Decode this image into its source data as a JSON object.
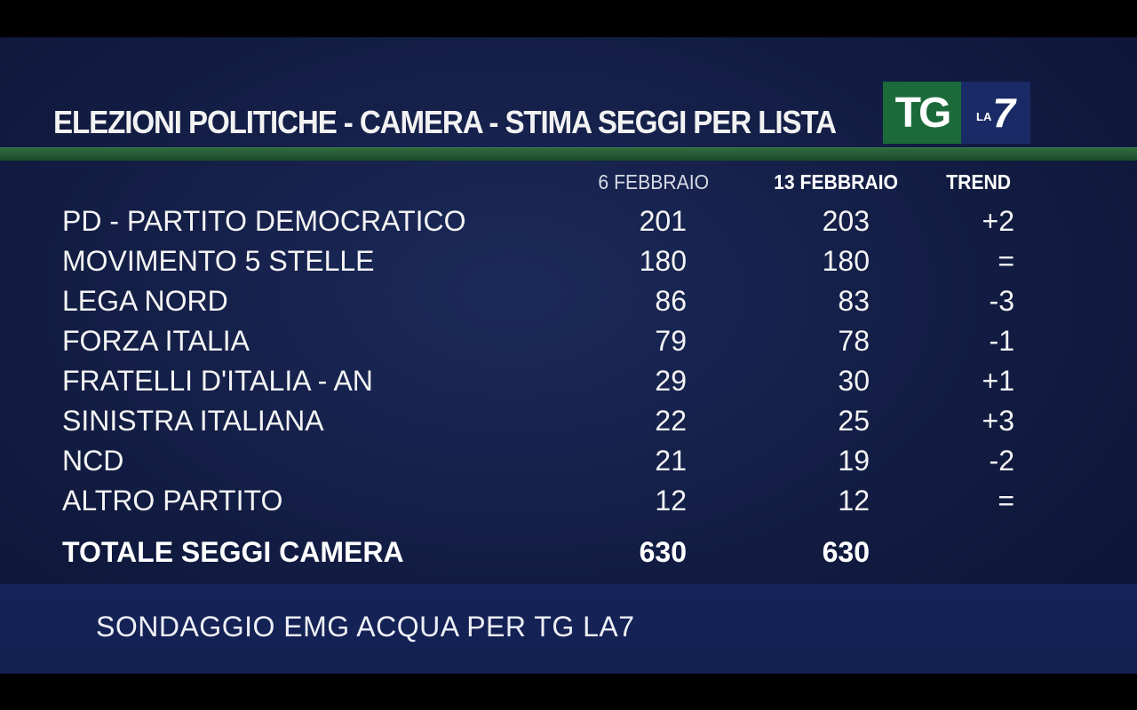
{
  "title": "ELEZIONI POLITICHE - CAMERA - STIMA SEGGI PER LISTA",
  "logo": {
    "tg": "TG",
    "la": "LA",
    "seven": "7"
  },
  "columns": {
    "date1": "6 FEBBRAIO",
    "date2": "13 FEBBRAIO",
    "trend": "TREND"
  },
  "rows": [
    {
      "name": "PD - PARTITO DEMOCRATICO",
      "v1": "201",
      "v2": "203",
      "trend": "+2"
    },
    {
      "name": "MOVIMENTO 5 STELLE",
      "v1": "180",
      "v2": "180",
      "trend": "="
    },
    {
      "name": "LEGA NORD",
      "v1": "86",
      "v2": "83",
      "trend": "-3"
    },
    {
      "name": "FORZA ITALIA",
      "v1": "79",
      "v2": "78",
      "trend": "-1"
    },
    {
      "name": "FRATELLI D'ITALIA - AN",
      "v1": "29",
      "v2": "30",
      "trend": "+1"
    },
    {
      "name": "SINISTRA ITALIANA",
      "v1": "22",
      "v2": "25",
      "trend": "+3"
    },
    {
      "name": "NCD",
      "v1": "21",
      "v2": "19",
      "trend": "-2"
    },
    {
      "name": "ALTRO PARTITO",
      "v1": "12",
      "v2": "12",
      "trend": "="
    }
  ],
  "total": {
    "name": "TOTALE SEGGI CAMERA",
    "v1": "630",
    "v2": "630"
  },
  "source": "SONDAGGIO EMG ACQUA PER TG LA7"
}
